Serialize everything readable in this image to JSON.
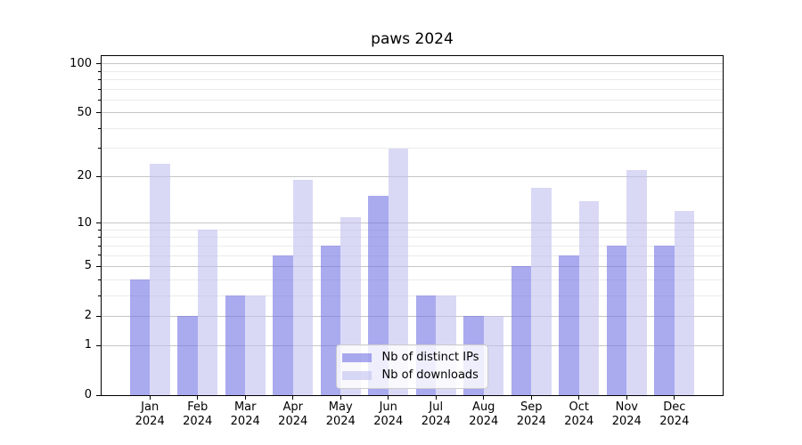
{
  "chart_data": {
    "type": "bar",
    "title": "paws 2024",
    "categories": [
      "Jan",
      "Feb",
      "Mar",
      "Apr",
      "May",
      "Jun",
      "Jul",
      "Aug",
      "Sep",
      "Oct",
      "Nov",
      "Dec"
    ],
    "x_tick_second_line": "2024",
    "series": [
      {
        "name": "Nb of distinct IPs",
        "color": "#aaaaee",
        "fill": "rgba(114,114,228,0.6)",
        "values": [
          4,
          2,
          3,
          6,
          7,
          15,
          3,
          2,
          5,
          6,
          7,
          7
        ]
      },
      {
        "name": "Nb of downloads",
        "color": "#d9d9f5",
        "fill": "rgba(192,192,240,0.6)",
        "values": [
          24,
          9,
          3,
          19,
          11,
          30,
          3,
          2,
          17,
          14,
          22,
          12
        ]
      }
    ],
    "y_scale": "log1p",
    "y_ticks": [
      0,
      1,
      2,
      5,
      10,
      20,
      50,
      100
    ],
    "y_minor_ticks": [
      3,
      4,
      6,
      7,
      8,
      9,
      30,
      40,
      60,
      70,
      80,
      90
    ],
    "ylim": [
      0,
      111.4
    ],
    "grid": true,
    "legend_position": "lower center",
    "colors": {
      "major_grid": "#c6c6c6",
      "minor_grid": "#ebebeb",
      "spine": "#000000",
      "background": "#ffffff"
    }
  }
}
